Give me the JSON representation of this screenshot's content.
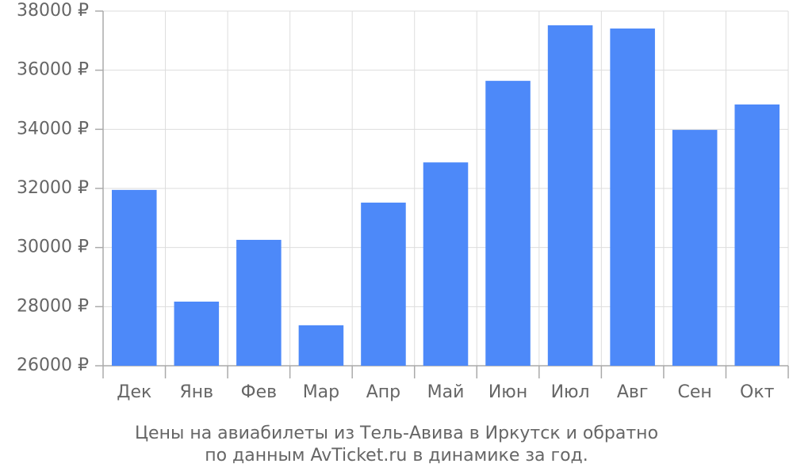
{
  "chart_data": {
    "type": "bar",
    "caption": [
      "Цены на авиабилеты из Тель-Авива в Иркутск и обратно",
      "по данным AvTicket.ru в динамике за год."
    ],
    "categories": [
      "Дек",
      "Янв",
      "Фев",
      "Мар",
      "Апр",
      "Май",
      "Июн",
      "Июл",
      "Авг",
      "Сен",
      "Окт"
    ],
    "values": [
      31950,
      28170,
      30260,
      27370,
      31520,
      32880,
      35640,
      37520,
      37410,
      33980,
      34840
    ],
    "color": "#4d89f9",
    "ylim": [
      26000,
      38000
    ],
    "yticks": [
      {
        "value": 26000,
        "label": "26000 ₽"
      },
      {
        "value": 28000,
        "label": "28000 ₽"
      },
      {
        "value": 30000,
        "label": "30000 ₽"
      },
      {
        "value": 32000,
        "label": "32000 ₽"
      },
      {
        "value": 34000,
        "label": "34000 ₽"
      },
      {
        "value": 36000,
        "label": "36000 ₽"
      },
      {
        "value": 38000,
        "label": "38000 ₽"
      }
    ],
    "grid": true
  }
}
